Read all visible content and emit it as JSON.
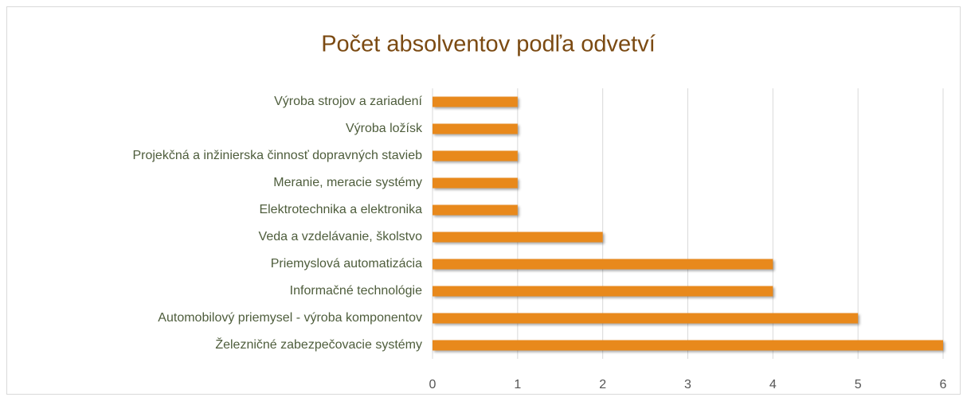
{
  "chart_data": {
    "type": "bar",
    "orientation": "horizontal",
    "title": "Počet absolventov podľa odvetví",
    "categories": [
      "Výroba strojov a zariadení",
      "Výroba ložísk",
      "Projekčná a inžinierska činnosť dopravných stavieb",
      "Meranie, meracie systémy",
      "Elektrotechnika a elektronika",
      "Veda a vzdelávanie, školstvo",
      "Priemyslová automatizácia",
      "Informačné technológie",
      "Automobilový priemysel - výroba komponentov",
      "Železničné zabezpečovacie systémy"
    ],
    "values": [
      1,
      1,
      1,
      1,
      1,
      2,
      4,
      4,
      5,
      6
    ],
    "color": "#e8891c",
    "xlim": [
      0,
      6
    ],
    "xticks": [
      0,
      1,
      2,
      3,
      4,
      5,
      6
    ],
    "grid": true
  }
}
